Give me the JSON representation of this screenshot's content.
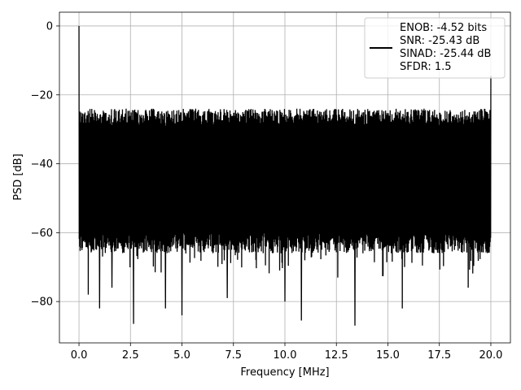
{
  "chart_data": {
    "type": "line",
    "title": "",
    "xlabel": "Frequency [MHz]",
    "ylabel": "PSD [dB]",
    "xlim": [
      -0.95,
      20.95
    ],
    "ylim": [
      -92,
      4
    ],
    "grid": true,
    "legend_position": "top-right",
    "xticks": [
      0.0,
      2.5,
      5.0,
      7.5,
      10.0,
      12.5,
      15.0,
      17.5,
      20.0
    ],
    "xtick_labels": [
      "0.0",
      "2.5",
      "5.0",
      "7.5",
      "10.0",
      "12.5",
      "15.0",
      "17.5",
      "20.0"
    ],
    "yticks": [
      0,
      -20,
      -40,
      -60,
      -80
    ],
    "ytick_labels": [
      "0",
      "−20",
      "−40",
      "−60",
      "−80"
    ],
    "series": [
      {
        "color": "#000000",
        "description": "dense noise-like PSD spanning 0 to 20 MHz",
        "x_range": [
          0,
          20
        ],
        "upper_envelope_dB": -22,
        "lower_envelope_dB": -66,
        "peaks": [
          {
            "x": 0.0,
            "y": 0.0
          },
          {
            "x": 20.0,
            "y": -14.5
          }
        ],
        "deep_nulls": [
          {
            "x": 0.45,
            "y": -78
          },
          {
            "x": 1.0,
            "y": -82
          },
          {
            "x": 1.6,
            "y": -76
          },
          {
            "x": 2.65,
            "y": -86.5
          },
          {
            "x": 4.2,
            "y": -82
          },
          {
            "x": 5.0,
            "y": -84
          },
          {
            "x": 7.2,
            "y": -79
          },
          {
            "x": 10.0,
            "y": -80
          },
          {
            "x": 10.8,
            "y": -85.5
          },
          {
            "x": 13.4,
            "y": -87
          },
          {
            "x": 15.7,
            "y": -82
          },
          {
            "x": 18.9,
            "y": -76
          }
        ]
      }
    ],
    "legend": {
      "lines": [
        "ENOB: -4.52 bits",
        "SNR: -25.43 dB",
        "SINAD: -25.44 dB",
        "SFDR: 1.5"
      ]
    }
  }
}
